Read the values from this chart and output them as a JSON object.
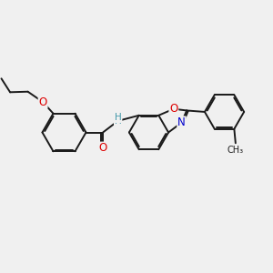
{
  "bg_color": "#f0f0f0",
  "bond_color": "#1a1a1a",
  "bond_lw": 1.4,
  "dbo": 0.055,
  "atom_colors": {
    "O": "#dd0000",
    "N": "#0000cc",
    "C": "#1a1a1a",
    "H": "#4499aa"
  },
  "font_size": 7.5,
  "fig_size": [
    3.0,
    3.0
  ],
  "dpi": 100
}
